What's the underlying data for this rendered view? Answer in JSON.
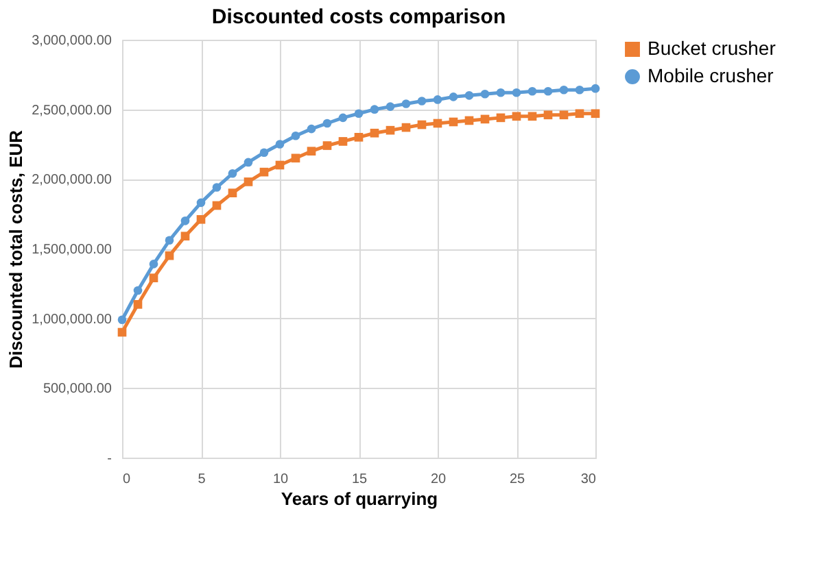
{
  "chart_data": {
    "type": "line",
    "title": "Discounted costs comparison",
    "xlabel": "Years of quarrying",
    "ylabel": "Discounted total costs, EUR",
    "x": [
      0,
      1,
      2,
      3,
      4,
      5,
      6,
      7,
      8,
      9,
      10,
      11,
      12,
      13,
      14,
      15,
      16,
      17,
      18,
      19,
      20,
      21,
      22,
      23,
      24,
      25,
      26,
      27,
      28,
      29,
      30
    ],
    "series": [
      {
        "name": "Bucket crusher",
        "color": "#ed7d31",
        "marker": "square",
        "values": [
          900000,
          1100000,
          1290000,
          1450000,
          1590000,
          1710000,
          1810000,
          1900000,
          1980000,
          2050000,
          2100000,
          2150000,
          2200000,
          2240000,
          2270000,
          2300000,
          2330000,
          2350000,
          2370000,
          2390000,
          2400000,
          2410000,
          2420000,
          2430000,
          2440000,
          2450000,
          2450000,
          2460000,
          2460000,
          2470000,
          2470000
        ]
      },
      {
        "name": "Mobile crusher",
        "color": "#5b9bd5",
        "marker": "circle",
        "values": [
          990000,
          1200000,
          1390000,
          1560000,
          1700000,
          1830000,
          1940000,
          2040000,
          2120000,
          2190000,
          2250000,
          2310000,
          2360000,
          2400000,
          2440000,
          2470000,
          2500000,
          2520000,
          2540000,
          2560000,
          2570000,
          2590000,
          2600000,
          2610000,
          2620000,
          2620000,
          2630000,
          2630000,
          2640000,
          2640000,
          2650000
        ]
      }
    ],
    "xlim": [
      0,
      30
    ],
    "xticks": [
      0,
      5,
      10,
      15,
      20,
      25,
      30
    ],
    "ylim": [
      0,
      3000000
    ],
    "yticks": [
      {
        "value": 0,
        "label": "-"
      },
      {
        "value": 500000,
        "label": "500,000.00"
      },
      {
        "value": 1000000,
        "label": "1,000,000.00"
      },
      {
        "value": 1500000,
        "label": "1,500,000.00"
      },
      {
        "value": 2000000,
        "label": "2,000,000.00"
      },
      {
        "value": 2500000,
        "label": "2,500,000.00"
      },
      {
        "value": 3000000,
        "label": "3,000,000.00"
      }
    ],
    "grid": true,
    "legend": "right",
    "line_style": "solid"
  }
}
